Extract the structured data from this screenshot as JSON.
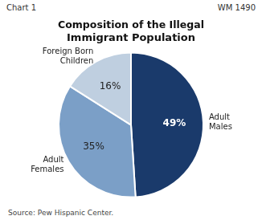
{
  "chart_data": {
    "type": "pie",
    "title": "Composition of the Illegal\nImmigrant Population",
    "categories": [
      "Adult\nMales",
      "Adult\nFemales",
      "Foreign Born\nChildren"
    ],
    "values": [
      49,
      35,
      16
    ],
    "value_labels": [
      "49%",
      "35%",
      "16%"
    ],
    "data_labels": true,
    "colors": [
      "#1a3a6b",
      "#7b9fc7",
      "#bfcfe0"
    ],
    "legend": false,
    "annotations": [
      "Chart 1",
      "WM 1490",
      "Source: Pew Hispanic Center."
    ]
  }
}
